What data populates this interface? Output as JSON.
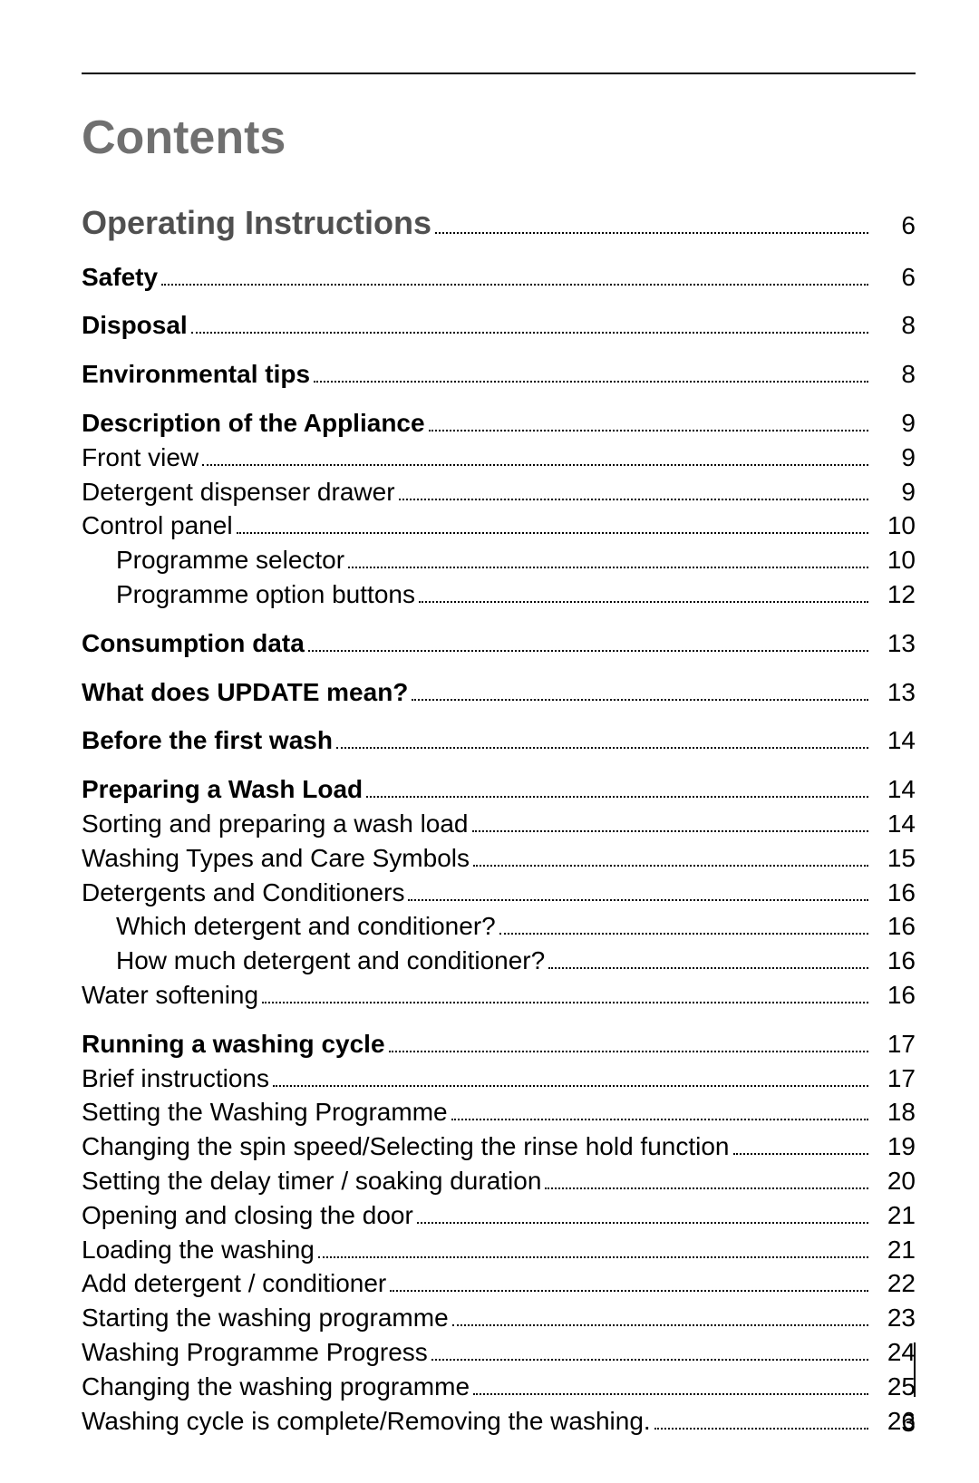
{
  "title": "Contents",
  "footer_page": "3",
  "entries": [
    {
      "label": "Operating Instructions",
      "page": "6",
      "level": 0,
      "weight": "bold-large",
      "gap": false
    },
    {
      "label": "Safety",
      "page": "6",
      "level": 0,
      "weight": "bold",
      "gap": true
    },
    {
      "label": "Disposal",
      "page": "8",
      "level": 0,
      "weight": "bold",
      "gap": true
    },
    {
      "label": "Environmental tips",
      "page": "8",
      "level": 0,
      "weight": "bold",
      "gap": true
    },
    {
      "label": "Description of the Appliance",
      "page": "9",
      "level": 0,
      "weight": "bold",
      "gap": true
    },
    {
      "label": "Front view",
      "page": "9",
      "level": 1,
      "weight": "normal",
      "gap": false
    },
    {
      "label": "Detergent dispenser drawer",
      "page": "9",
      "level": 1,
      "weight": "normal",
      "gap": false
    },
    {
      "label": "Control panel",
      "page": "10",
      "level": 1,
      "weight": "normal",
      "gap": false
    },
    {
      "label": "Programme selector",
      "page": "10",
      "level": 2,
      "weight": "normal",
      "gap": false
    },
    {
      "label": "Programme option buttons",
      "page": "12",
      "level": 2,
      "weight": "normal",
      "gap": false
    },
    {
      "label": "Consumption data",
      "page": "13",
      "level": 0,
      "weight": "bold",
      "gap": true
    },
    {
      "label": "What does UPDATE mean?",
      "page": "13",
      "level": 0,
      "weight": "bold",
      "gap": true
    },
    {
      "label": "Before the first wash",
      "page": "14",
      "level": 0,
      "weight": "bold",
      "gap": true
    },
    {
      "label": "Preparing a Wash Load",
      "page": "14",
      "level": 0,
      "weight": "bold",
      "gap": true
    },
    {
      "label": "Sorting and preparing a wash load",
      "page": "14",
      "level": 1,
      "weight": "normal",
      "gap": false
    },
    {
      "label": "Washing Types and Care Symbols",
      "page": "15",
      "level": 1,
      "weight": "normal",
      "gap": false
    },
    {
      "label": "Detergents and Conditioners",
      "page": "16",
      "level": 1,
      "weight": "normal",
      "gap": false
    },
    {
      "label": "Which detergent and conditioner?",
      "page": "16",
      "level": 2,
      "weight": "normal",
      "gap": false
    },
    {
      "label": "How much detergent and conditioner?",
      "page": "16",
      "level": 2,
      "weight": "normal",
      "gap": false
    },
    {
      "label": "Water softening",
      "page": "16",
      "level": 1,
      "weight": "normal",
      "gap": false
    },
    {
      "label": "Running a washing cycle",
      "page": "17",
      "level": 0,
      "weight": "bold",
      "gap": true
    },
    {
      "label": "Brief instructions",
      "page": "17",
      "level": 1,
      "weight": "normal",
      "gap": false
    },
    {
      "label": "Setting the Washing Programme",
      "page": "18",
      "level": 1,
      "weight": "normal",
      "gap": false
    },
    {
      "label": "Changing the spin speed/Selecting the rinse hold function",
      "page": "19",
      "level": 1,
      "weight": "normal",
      "gap": false
    },
    {
      "label": "Setting the delay timer / soaking duration",
      "page": "20",
      "level": 1,
      "weight": "normal",
      "gap": false
    },
    {
      "label": "Opening and closing the door",
      "page": "21",
      "level": 1,
      "weight": "normal",
      "gap": false
    },
    {
      "label": "Loading the washing",
      "page": "21",
      "level": 1,
      "weight": "normal",
      "gap": false
    },
    {
      "label": "Add detergent / conditioner",
      "page": "22",
      "level": 1,
      "weight": "normal",
      "gap": false
    },
    {
      "label": "Starting the washing programme",
      "page": "23",
      "level": 1,
      "weight": "normal",
      "gap": false
    },
    {
      "label": "Washing Programme Progress",
      "page": "24",
      "level": 1,
      "weight": "normal",
      "gap": false
    },
    {
      "label": "Changing the washing programme",
      "page": "25",
      "level": 1,
      "weight": "normal",
      "gap": false
    },
    {
      "label": "Washing cycle is complete/Removing the washing.",
      "page": "26",
      "level": 1,
      "weight": "normal",
      "gap": false
    }
  ]
}
